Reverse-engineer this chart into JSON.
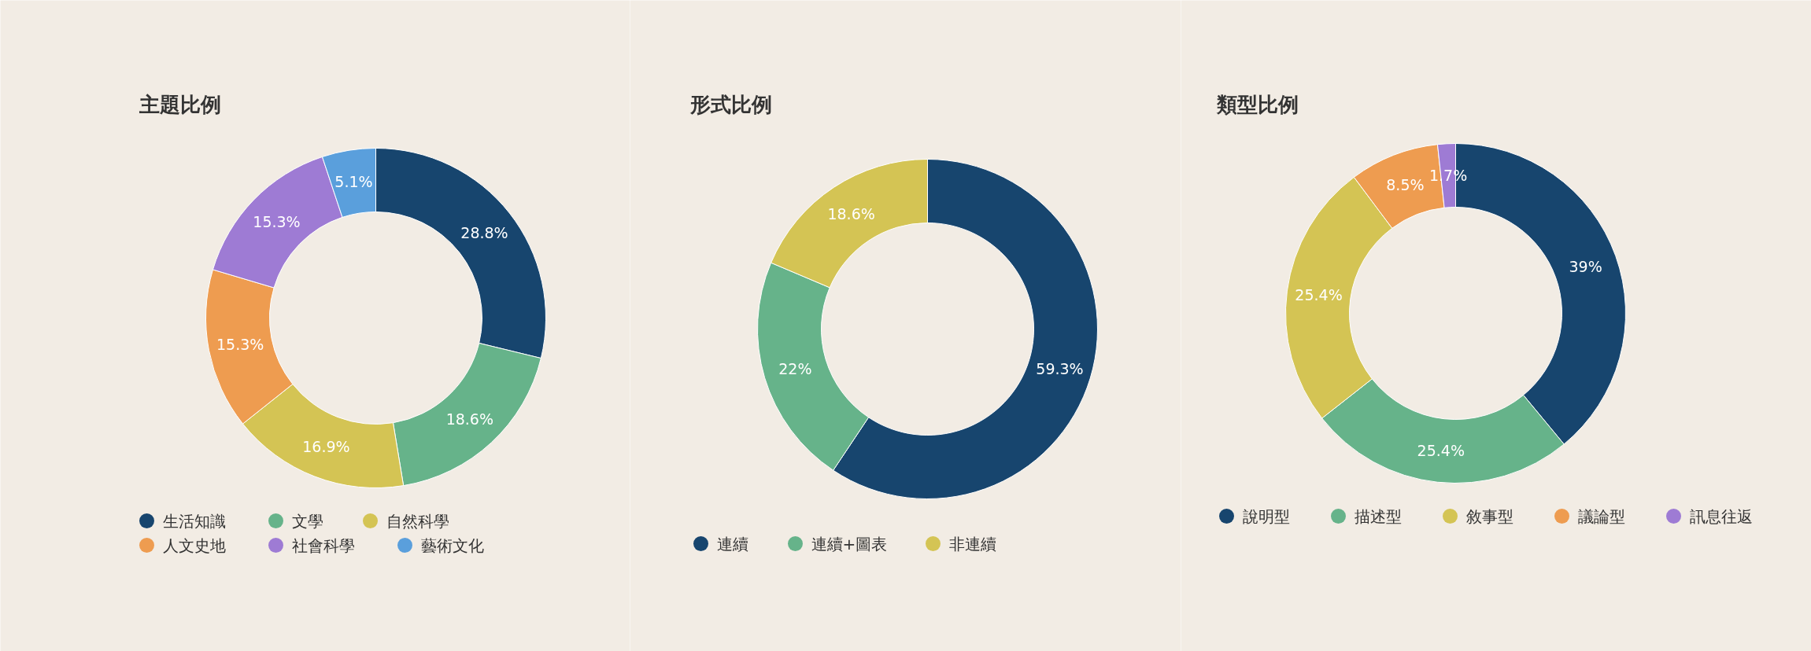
{
  "chart_data": [
    {
      "type": "donut",
      "title": "主題比例",
      "categories": [
        "生活知識",
        "文學",
        "自然科學",
        "人文史地",
        "社會科學",
        "藝術文化"
      ],
      "values": [
        28.8,
        18.6,
        16.9,
        15.3,
        15.3,
        5.1
      ],
      "colors": [
        "#17456e",
        "#66b38a",
        "#d4c454",
        "#ee9c50",
        "#9e7bd4",
        "#5a9fdc"
      ],
      "value_labels": [
        "28.8%",
        "18.6%",
        "16.9%",
        "15.3%",
        "15.3%",
        "5.1%"
      ],
      "legend": "bottom"
    },
    {
      "type": "donut",
      "title": "形式比例",
      "categories": [
        "連續",
        "連續+圖表",
        "非連續"
      ],
      "values": [
        59.3,
        22,
        18.6
      ],
      "colors": [
        "#17456e",
        "#66b38a",
        "#d4c454"
      ],
      "value_labels": [
        "59.3%",
        "22%",
        "18.6%"
      ],
      "legend": "bottom"
    },
    {
      "type": "donut",
      "title": "類型比例",
      "categories": [
        "說明型",
        "描述型",
        "敘事型",
        "議論型",
        "訊息往返"
      ],
      "values": [
        39,
        25.4,
        25.4,
        8.5,
        1.7
      ],
      "colors": [
        "#17456e",
        "#66b38a",
        "#d4c454",
        "#ee9c50",
        "#9e7bd4"
      ],
      "value_labels": [
        "39%",
        "25.4%",
        "25.4%",
        "8.5%",
        "1.7%"
      ],
      "legend": "bottom"
    }
  ]
}
